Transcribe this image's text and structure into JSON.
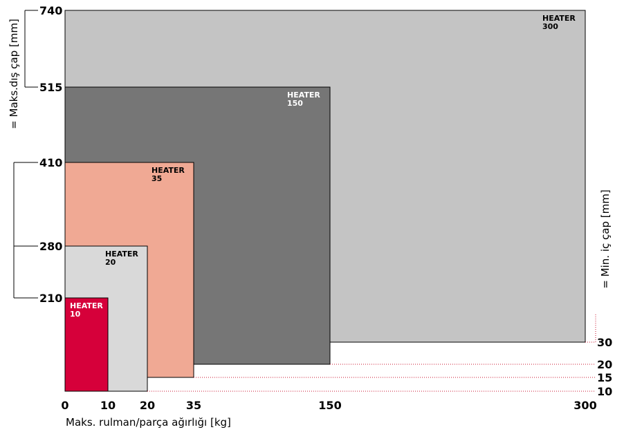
{
  "chart_data": {
    "type": "nested-area",
    "xlabel": "Maks. rulman/parça ağırlığı  [kg]",
    "ylabel": "= Maks.dış çap  [mm]",
    "y2label": "= Min. iç çap  [mm]",
    "x_ticks": [
      "0",
      "10",
      "20",
      "35",
      "150",
      "300"
    ],
    "y_ticks": [
      "210",
      "280",
      "410",
      "515",
      "740"
    ],
    "y2_ticks": [
      "10",
      "15",
      "20",
      "30"
    ],
    "series": [
      {
        "name": "HEATER\n300",
        "label_line1": "HEATER",
        "label_line2": "300",
        "max_weight_kg": 300,
        "max_outer_diameter_mm": 740,
        "min_inner_diameter_mm": 30,
        "color": "#c4c4c4",
        "label_color": "#000000"
      },
      {
        "name": "HEATER\n150",
        "label_line1": "HEATER",
        "label_line2": "150",
        "max_weight_kg": 150,
        "max_outer_diameter_mm": 515,
        "min_inner_diameter_mm": 20,
        "color": "#767676",
        "label_color": "#ffffff"
      },
      {
        "name": "HEATER\n35",
        "label_line1": "HEATER",
        "label_line2": "35",
        "max_weight_kg": 35,
        "max_outer_diameter_mm": 410,
        "min_inner_diameter_mm": 15,
        "color": "#f0a994",
        "label_color": "#000000"
      },
      {
        "name": "HEATER\n20",
        "label_line1": "HEATER",
        "label_line2": "20",
        "max_weight_kg": 20,
        "max_outer_diameter_mm": 280,
        "min_inner_diameter_mm": 10,
        "color": "#d9d9d9",
        "label_color": "#000000"
      },
      {
        "name": "HEATER\n10",
        "label_line1": "HEATER",
        "label_line2": "10",
        "max_weight_kg": 10,
        "max_outer_diameter_mm": 210,
        "min_inner_diameter_mm": 10,
        "color": "#d6003a",
        "label_color": "#ffffff"
      }
    ],
    "scales": "non-linear, ordinal-style axes",
    "grid": false,
    "legend": "none (boxes labeled inline)"
  }
}
